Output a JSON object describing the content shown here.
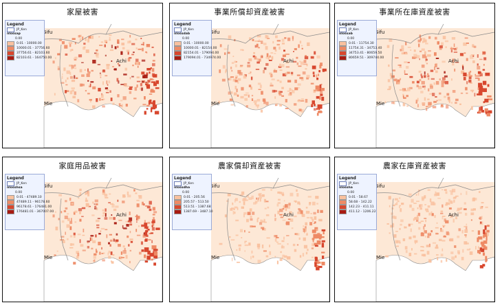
{
  "panels": [
    {
      "title": "家屋被害",
      "field": "nlossap",
      "legend_title": "Legend",
      "layer": "JP_Ken",
      "zero": "0.00",
      "classes": [
        "0.01 - 10000.00",
        "10000.01 - 37756.60",
        "37756.61 - 82103.60",
        "82103.61 - 164750.00"
      ],
      "labels": {
        "gifu": "Gifu",
        "achi": "Achi",
        "mie": "Mie"
      }
    },
    {
      "title": "事業所償却資産被害",
      "field": "nlossdab",
      "legend_title": "Legend",
      "layer": "JP_Ken",
      "zero": "0.00",
      "classes": [
        "0.01 - 10000.00",
        "10000.01 - 82154.00",
        "82154.01 - 179094.00",
        "179094.01 - 734974.00"
      ],
      "labels": {
        "gifu": "Gifu",
        "achi": "Achi",
        "mie": "Mie"
      }
    },
    {
      "title": "事業所在庫資産被害",
      "field": "nlossab",
      "legend_title": "Legend",
      "layer": "JP_Ken",
      "zero": "0.00",
      "classes": [
        "0.01 - 11754.30",
        "11754.31 - 34753.40",
        "34753.41 - 80659.50",
        "80659.51 - 309744.00"
      ],
      "labels": {
        "gifu": "Gifu",
        "achi": "Achi",
        "mie": "Mie"
      }
    },
    {
      "title": "家庭用品被害",
      "field": "nlosshsa",
      "legend_title": "Legend",
      "layer": "JP_Ken",
      "zero": "0.00",
      "classes": [
        "0.01 - 47489.10",
        "47489.11 - 96178.60",
        "96178.61 - 176481.00",
        "176481.01 - 367007.00"
      ],
      "labels": {
        "gifu": "Gifu",
        "achi": "Achi",
        "mie": "Mie"
      }
    },
    {
      "title": "農家償却資産被害",
      "field": "nlossdha",
      "legend_title": "Legend",
      "layer": "JP_Ken",
      "zero": "0.00",
      "classes": [
        "0.01 - 205.56",
        "205.57 - 513.50",
        "513.51 - 1387.68",
        "1387.69 - 3487.10"
      ],
      "labels": {
        "gifu": "Gifu",
        "achi": "Achi",
        "mie": "Mie"
      }
    },
    {
      "title": "農家在庫資産被害",
      "field": "nlossha",
      "legend_title": "Legend",
      "layer": "JP_Ken",
      "zero": "0.00",
      "classes": [
        "0.01 - 58.67",
        "58.68 - 142.22",
        "142.23 - 411.11",
        "411.12 - 1206.22"
      ],
      "labels": {
        "gifu": "Gifu",
        "achi": "Achi",
        "mie": "Mie"
      }
    }
  ],
  "colors": {
    "c0": "#fde5d3",
    "c1": "#f9c19f",
    "c2": "#ee8a65",
    "c3": "#d8472e",
    "c4": "#a81b12",
    "background": "#fde8d6",
    "boundary": "#8a8a8a",
    "legend_bg": "#eef3ff"
  }
}
